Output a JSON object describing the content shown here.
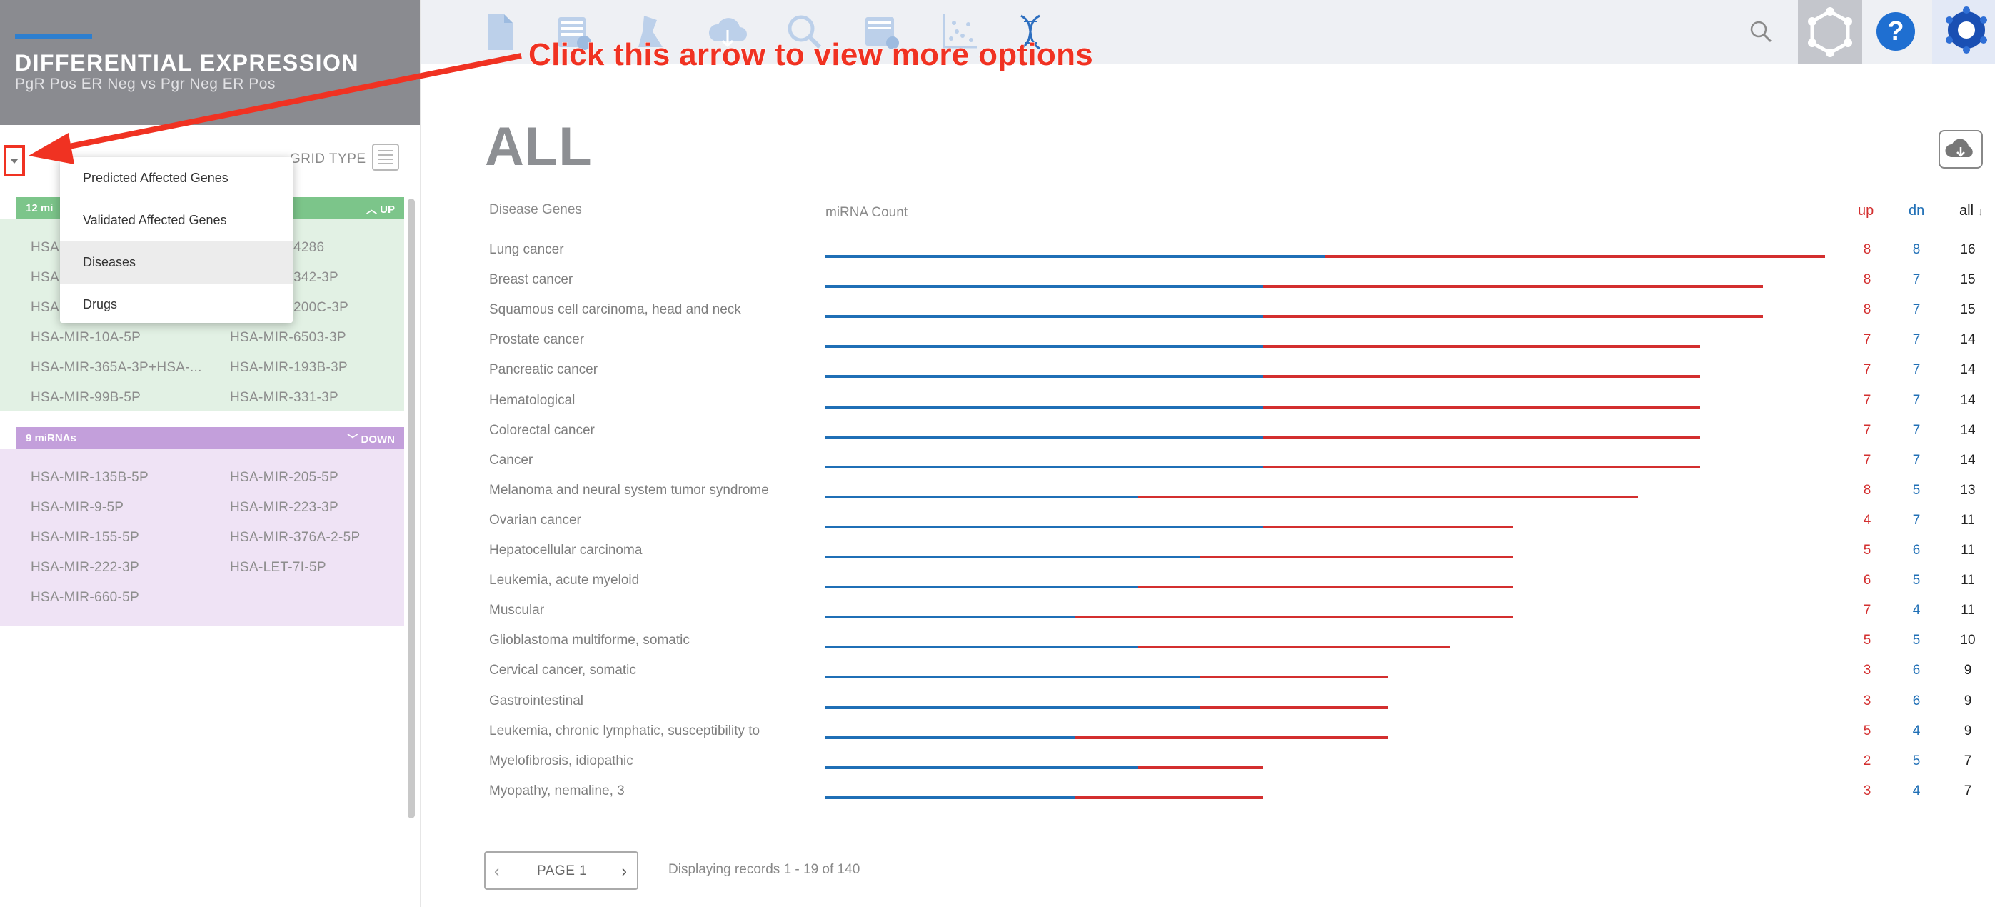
{
  "sidebar": {
    "title": "DIFFERENTIAL EXPRESSION",
    "subtitle": "PgR Pos ER Neg vs Pgr Neg ER Pos",
    "grid_type_label": "GRID TYPE",
    "up_group": {
      "count_label": "12 miRNAs",
      "direction_label": "UP",
      "items": [
        "HSA-MIR-4286",
        "HSA-MIR-342-3P",
        "HSA-MIR-200C-3P",
        "HSA-MIR-10A-5P",
        "HSA-MIR-6503-3P",
        "HSA-MIR-365A-3P+HSA-...",
        "HSA-MIR-193B-3P",
        "HSA-MIR-99B-5P",
        "HSA-MIR-331-3P"
      ]
    },
    "down_group": {
      "count_label": "9 miRNAs",
      "direction_label": "DOWN",
      "items": [
        "HSA-MIR-135B-5P",
        "HSA-MIR-205-5P",
        "HSA-MIR-9-5P",
        "HSA-MIR-223-3P",
        "HSA-MIR-155-5P",
        "HSA-MIR-376A-2-5P",
        "HSA-MIR-222-3P",
        "HSA-LET-7I-5P",
        "HSA-MIR-660-5P"
      ]
    },
    "up_partial": [
      "HSA",
      "HSA",
      "HSA"
    ],
    "up_count_partial": "12 mi"
  },
  "dropdown": {
    "items": [
      "Predicted Affected Genes",
      "Validated Affected Genes",
      "Diseases",
      "Drugs"
    ],
    "selected": "Diseases"
  },
  "annotation": {
    "text": "Click this arrow to view more options",
    "color": "#f03222"
  },
  "topnav": {
    "icons": [
      "document-icon",
      "gene-table-icon",
      "flask-icon",
      "cloud-download-icon",
      "magnify-chart-icon",
      "grid-settings-icon",
      "scatter-plot-icon",
      "dna-icon"
    ],
    "search_icon": "search-icon",
    "settings_icon": "settings-network-icon",
    "help_label": "?",
    "logo_icon": "logo-icon"
  },
  "main": {
    "title": "ALL",
    "col_disease": "Disease Genes",
    "col_count": "miRNA Count",
    "col_up": "up",
    "col_dn": "dn",
    "col_all": "all",
    "sort_indicator": "↓",
    "rows": [
      {
        "name": "Lung cancer",
        "up": 8,
        "dn": 8,
        "all": 16
      },
      {
        "name": "Breast cancer",
        "up": 8,
        "dn": 7,
        "all": 15
      },
      {
        "name": "Squamous cell carcinoma, head and neck",
        "up": 8,
        "dn": 7,
        "all": 15
      },
      {
        "name": "Prostate cancer",
        "up": 7,
        "dn": 7,
        "all": 14
      },
      {
        "name": "Pancreatic cancer",
        "up": 7,
        "dn": 7,
        "all": 14
      },
      {
        "name": "Hematological",
        "up": 7,
        "dn": 7,
        "all": 14
      },
      {
        "name": "Colorectal cancer",
        "up": 7,
        "dn": 7,
        "all": 14
      },
      {
        "name": "Cancer",
        "up": 7,
        "dn": 7,
        "all": 14
      },
      {
        "name": "Melanoma and neural system tumor syndrome",
        "up": 8,
        "dn": 5,
        "all": 13
      },
      {
        "name": "Ovarian cancer",
        "up": 4,
        "dn": 7,
        "all": 11
      },
      {
        "name": "Hepatocellular carcinoma",
        "up": 5,
        "dn": 6,
        "all": 11
      },
      {
        "name": "Leukemia, acute myeloid",
        "up": 6,
        "dn": 5,
        "all": 11
      },
      {
        "name": "Muscular",
        "up": 7,
        "dn": 4,
        "all": 11
      },
      {
        "name": "Glioblastoma multiforme, somatic",
        "up": 5,
        "dn": 5,
        "all": 10
      },
      {
        "name": "Cervical cancer, somatic",
        "up": 3,
        "dn": 6,
        "all": 9
      },
      {
        "name": "Gastrointestinal",
        "up": 3,
        "dn": 6,
        "all": 9
      },
      {
        "name": "Leukemia, chronic lymphatic, susceptibility to",
        "up": 5,
        "dn": 4,
        "all": 9
      },
      {
        "name": "Myelofibrosis, idiopathic",
        "up": 2,
        "dn": 5,
        "all": 7
      },
      {
        "name": "Myopathy, nemaline, 3",
        "up": 3,
        "dn": 4,
        "all": 7
      }
    ],
    "pager": {
      "page_label": "PAGE 1",
      "prev": "‹",
      "next": "›",
      "info": "Displaying records 1 - 19 of 140"
    }
  },
  "colors": {
    "up": "#d32f2f",
    "down": "#1f6fb6",
    "up_group_bg": "#e2f1e4",
    "down_group_bg": "#efe3f5"
  }
}
